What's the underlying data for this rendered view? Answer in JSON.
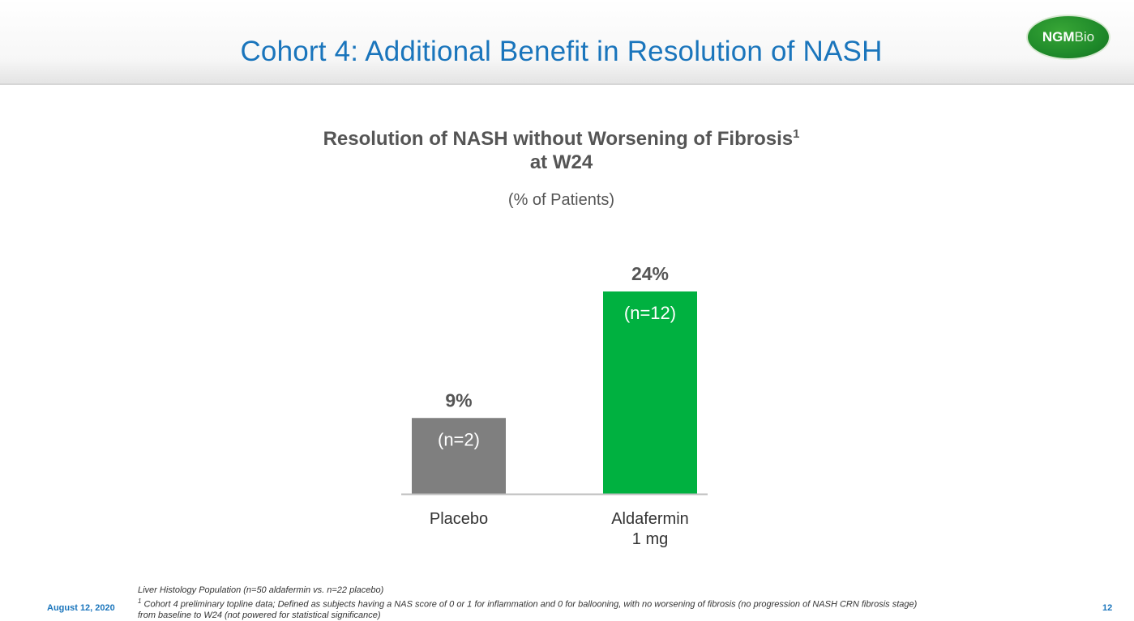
{
  "header": {
    "title": "Cohort 4:  Additional Benefit in Resolution of NASH",
    "logo_text_bold": "NGM",
    "logo_text_light": "Bio"
  },
  "chart_data": {
    "type": "bar",
    "title_line1": "Resolution of NASH without Worsening of Fibrosis",
    "title_superscript": "1",
    "title_line2": "at W24",
    "subtitle": "(% of Patients)",
    "ylim": [
      0,
      24
    ],
    "grid": false,
    "legend": "none",
    "bars": [
      {
        "category_lines": [
          "Placebo"
        ],
        "value": 9,
        "value_label": "9%",
        "n_label": "(n=2)",
        "color": "#7f7f7f"
      },
      {
        "category_lines": [
          "Aldafermin",
          "1 mg"
        ],
        "value": 24,
        "value_label": "24%",
        "n_label": "(n=12)",
        "color": "#00b140"
      }
    ]
  },
  "footer": {
    "note1": "Liver Histology Population (n=50 aldafermin vs. n=22 placebo)",
    "note2_sup": "1",
    "note2": " Cohort 4 preliminary topline data; Defined as subjects having a NAS score of 0 or 1 for inflammation and 0 for ballooning, with no worsening of fibrosis (no progression of NASH CRN fibrosis stage)",
    "note3": "from baseline to W24 (not powered for statistical significance)",
    "date": "August 12, 2020",
    "page": "12"
  }
}
